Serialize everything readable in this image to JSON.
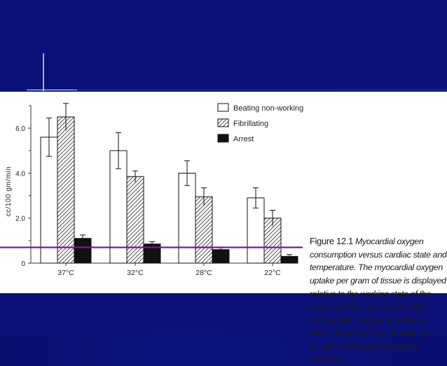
{
  "chart_data": {
    "type": "bar",
    "categories": [
      "37°C",
      "32°C",
      "28°C",
      "22°C"
    ],
    "series": [
      {
        "name": "Beating non-working",
        "values": [
          5.6,
          5.0,
          4.0,
          2.9
        ],
        "errors": [
          0.85,
          0.8,
          0.55,
          0.45
        ],
        "pattern": "white"
      },
      {
        "name": "Fibrillating",
        "values": [
          6.5,
          3.85,
          2.95,
          2.0
        ],
        "errors": [
          0.6,
          0.25,
          0.4,
          0.35
        ],
        "pattern": "hatched"
      },
      {
        "name": "Arrest",
        "values": [
          1.1,
          0.85,
          0.6,
          0.3
        ],
        "errors": [
          0.15,
          0.1,
          0.08,
          0.08
        ],
        "pattern": "black"
      }
    ],
    "ylabel": "cc/100 gm/min",
    "yticks": [
      "0",
      "2.0",
      "4.0",
      "6.0"
    ],
    "ylim": [
      0,
      7.0
    ],
    "reference_line": {
      "value": 0.7,
      "color": "#7b1a8c"
    },
    "legend_position": "top-right",
    "grid": false
  },
  "caption": {
    "figure_label": "Figure 12.1",
    "text": "Myocardial oxygen consumption versus cardiac state and temperature. The myocardial oxygen uptake per gram of tissue is displayed relative to the working state of the heart and the temperature of the myocardium. Values are mean ± SEM. (Reprinted from Buckberg et al., 1977, with permission from Elsevier.)"
  },
  "colors": {
    "background": "#0b1178",
    "panel": "#ffffff",
    "reference_line": "#7b1a8c"
  }
}
